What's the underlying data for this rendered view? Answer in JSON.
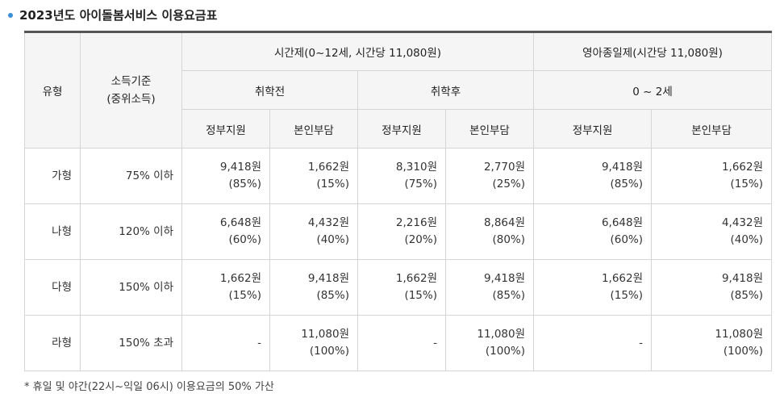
{
  "title": "2023년도 아이돌봄서비스 이용요금표",
  "headers": {
    "type": "유형",
    "income": "소득기준\n(중위소득)",
    "hourly": "시간제(0~12세, 시간당 11,080원)",
    "infant": "영아종일제(시간당 11,080원)",
    "pre_school": "취학전",
    "post_school": "취학후",
    "age_range": "0 ~ 2세",
    "gov": "정부지원",
    "self": "본인부담"
  },
  "rows": [
    {
      "type": "가형",
      "income": "75% 이하",
      "c1": "9,418원\n(85%)",
      "c2": "1,662원\n(15%)",
      "c3": "8,310원\n(75%)",
      "c4": "2,770원\n(25%)",
      "c5": "9,418원\n(85%)",
      "c6": "1,662원\n(15%)"
    },
    {
      "type": "나형",
      "income": "120% 이하",
      "c1": "6,648원\n(60%)",
      "c2": "4,432원\n(40%)",
      "c3": "2,216원\n(20%)",
      "c4": "8,864원\n(80%)",
      "c5": "6,648원\n(60%)",
      "c6": "4,432원\n(40%)"
    },
    {
      "type": "다형",
      "income": "150% 이하",
      "c1": "1,662원\n(15%)",
      "c2": "9,418원\n(85%)",
      "c3": "1,662원\n(15%)",
      "c4": "9,418원\n(85%)",
      "c5": "1,662원\n(15%)",
      "c6": "9,418원\n(85%)"
    },
    {
      "type": "라형",
      "income": "150% 초과",
      "c1": "-",
      "c2": "11,080원\n(100%)",
      "c3": "-",
      "c4": "11,080원\n(100%)",
      "c5": "-",
      "c6": "11,080원\n(100%)"
    }
  ],
  "note": "* 휴일 및 야간(22시~익일 06시) 이용요금의 50% 가산"
}
